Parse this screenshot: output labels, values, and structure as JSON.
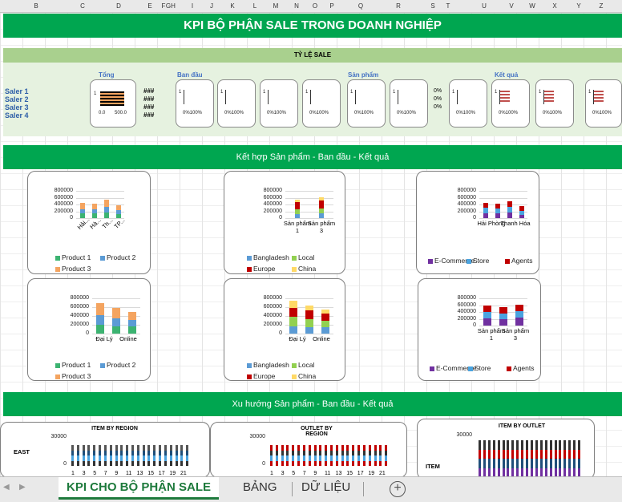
{
  "columns": [
    "B",
    "C",
    "D",
    "E",
    "F",
    "G",
    "H",
    "I",
    "J",
    "K",
    "L",
    "M",
    "N",
    "O",
    "P",
    "Q",
    "R",
    "S",
    "T",
    "U",
    "V",
    "W",
    "X",
    "Y",
    "Z"
  ],
  "title": "KPI BỘ PHẬN SALE TRONG DOANH NGHIỆP",
  "ratio_header": "TỶ LỆ SALE",
  "group_labels": {
    "total": "Tổng",
    "origin": "Ban đầu",
    "product": "Sản phẩm",
    "result": "Kết quả"
  },
  "salers": [
    "Saler 1",
    "Saler 2",
    "Saler 3",
    "Saler 4"
  ],
  "hash_marks": [
    "###",
    "###",
    "###",
    "###"
  ],
  "pct_zero": "0%",
  "mini_axis": {
    "one": "1",
    "zero": "0.0",
    "five_hundred": "500.0",
    "pct_range": "0%100%"
  },
  "section2": "Kết hợp Sản phẩm - Ban đầu - Kết quả",
  "section3": "Xu hướng Sản phẩm - Ban đầu - Kết quả",
  "yticks": [
    "800000",
    "600000",
    "400000",
    "200000",
    "0"
  ],
  "yticks_small": [
    "30000",
    "0"
  ],
  "charts": {
    "c1": {
      "cats": [
        "Hải...",
        "Hà...",
        "Th...",
        "TP..."
      ],
      "legend": [
        "Product 1",
        "Product 2",
        "Product 3"
      ]
    },
    "c2": {
      "cats": [
        "Sản phẩm 1",
        "Sản phẩm 3"
      ],
      "legend": [
        "Bangladesh",
        "Local",
        "Europe",
        "China"
      ]
    },
    "c3": {
      "cats": [
        "Hải Phòng",
        "Thanh Hóa"
      ],
      "legend": [
        "E-Commerce",
        "Store",
        "Agents"
      ]
    },
    "c4": {
      "cats": [
        "Đại Lý",
        "Online"
      ],
      "legend": [
        "Product 1",
        "Product 2",
        "Product 3"
      ]
    },
    "c5": {
      "cats": [
        "Đại Lý",
        "Online"
      ],
      "legend": [
        "Bangladesh",
        "Local",
        "Europe",
        "China"
      ]
    },
    "c6": {
      "cats": [
        "Sản phẩm 1",
        "Sản phẩm 3"
      ],
      "legend": [
        "E-Commerce",
        "Store",
        "Agents"
      ]
    }
  },
  "trend": {
    "t1": "ITEM BY REGION",
    "t2": "OUTLET BY REGION",
    "t3": "ITEM BY OUTLET",
    "east": "EAST",
    "item": "ITEM",
    "xticks": [
      "1",
      "3",
      "5",
      "7",
      "9",
      "11",
      "13",
      "15",
      "17",
      "19",
      "21"
    ]
  },
  "colors": {
    "green": "#00a650",
    "p1": "#3cb371",
    "p2": "#5b9bd5",
    "p3": "#f4a460",
    "red": "#c00000",
    "yellow": "#ffd966",
    "purple": "#7030a0",
    "blue": "#4aa3df",
    "lime": "#92d050"
  },
  "tabs": [
    "KPI CHO BỘ PHẬN SALE",
    "BẢNG",
    "DỮ LIỆU"
  ],
  "add_tab": "+"
}
